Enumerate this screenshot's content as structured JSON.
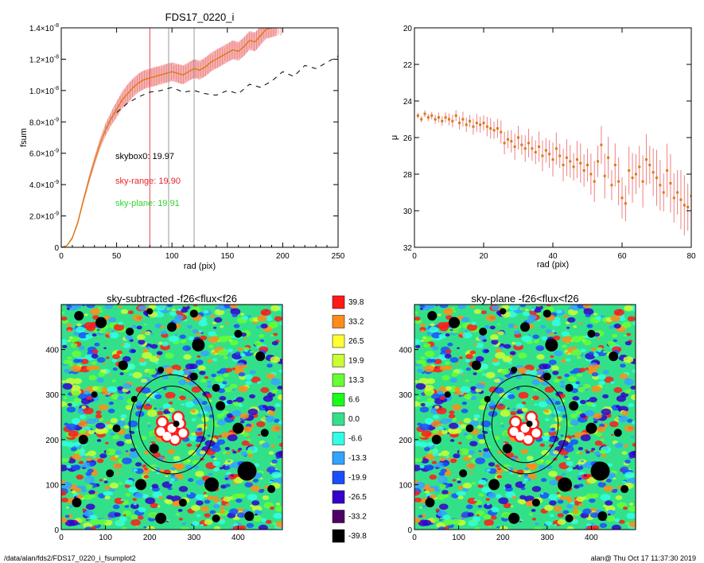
{
  "chart_data": [
    {
      "type": "line",
      "title": "FDS17_0220_i",
      "xlabel": "rad (pix)",
      "ylabel": "fsum",
      "xlim": [
        0,
        250
      ],
      "ylim": [
        0,
        1.4e-08
      ],
      "xticks": [
        "0",
        "50",
        "100",
        "150",
        "200",
        "250"
      ],
      "yticks": [
        {
          "v": 0,
          "t": "0"
        },
        {
          "v": 2e-09,
          "t": "2.0×10",
          "e": "-9"
        },
        {
          "v": 4e-09,
          "t": "4.0×10",
          "e": "-9"
        },
        {
          "v": 6e-09,
          "t": "6.0×10",
          "e": "-9"
        },
        {
          "v": 8e-09,
          "t": "8.0×10",
          "e": "-9"
        },
        {
          "v": 1e-08,
          "t": "1.0×10",
          "e": "-8"
        },
        {
          "v": 1.2e-08,
          "t": "1.2×10",
          "e": "-8"
        },
        {
          "v": 1.4e-08,
          "t": "1.4×10",
          "e": "-8"
        }
      ],
      "series": [
        {
          "color": "#d97a14",
          "x": [
            0,
            5,
            10,
            15,
            20,
            25,
            30,
            35,
            40,
            45,
            50,
            55,
            60,
            65,
            70,
            75,
            80,
            85,
            90,
            95,
            100,
            105,
            110,
            115,
            120,
            125,
            130,
            135,
            140,
            145,
            150,
            155,
            160,
            165,
            170,
            175,
            180,
            185,
            190,
            195
          ],
          "y": [
            0,
            1e-10,
            6e-10,
            1.6e-09,
            3e-09,
            4.3e-09,
            5.5e-09,
            6.6e-09,
            7.5e-09,
            8.2e-09,
            8.8e-09,
            9.4e-09,
            9.8e-09,
            1.02e-08,
            1.05e-08,
            1.07e-08,
            1.08e-08,
            1.09e-08,
            1.1e-08,
            1.11e-08,
            1.12e-08,
            1.11e-08,
            1.1e-08,
            1.12e-08,
            1.14e-08,
            1.13e-08,
            1.15e-08,
            1.18e-08,
            1.2e-08,
            1.22e-08,
            1.24e-08,
            1.26e-08,
            1.25e-08,
            1.28e-08,
            1.32e-08,
            1.31e-08,
            1.35e-08,
            1.39e-08,
            1.4e-08,
            1.41e-08
          ]
        },
        {
          "color": "#000000",
          "dashed": true,
          "x": [
            50,
            60,
            70,
            80,
            90,
            100,
            110,
            120,
            130,
            140,
            150,
            160,
            170,
            180,
            190,
            200,
            210,
            220,
            230,
            240,
            250
          ],
          "y": [
            8.6e-09,
            9.2e-09,
            9.6e-09,
            9.9e-09,
            1e-08,
            1.02e-08,
            9.9e-09,
            1e-08,
            9.8e-09,
            9.7e-09,
            1e-08,
            9.8e-09,
            1.04e-08,
            1.02e-08,
            1.06e-08,
            1.12e-08,
            1.09e-08,
            1.16e-08,
            1.14e-08,
            1.18e-08,
            1.22e-08
          ]
        }
      ],
      "vlines": [
        {
          "x": 80,
          "color": "#e8464f"
        },
        {
          "x": 97,
          "color": "#999999"
        },
        {
          "x": 120,
          "color": "#999999"
        }
      ],
      "annotations": [
        {
          "text": "skybox0: 19.97",
          "color": "#000000"
        },
        {
          "text": "sky-range: 19.90",
          "color": "#e8262c"
        },
        {
          "text": "sky-plane: 19.91",
          "color": "#2cd62c"
        }
      ]
    },
    {
      "type": "scatter",
      "xlabel": "rad (pix)",
      "ylabel": "μ",
      "xlim": [
        0,
        80
      ],
      "ylim": [
        32,
        20
      ],
      "xticks": [
        "0",
        "20",
        "40",
        "60",
        "80"
      ],
      "yticks": [
        "20",
        "22",
        "24",
        "26",
        "28",
        "30",
        "32"
      ],
      "x": [
        1,
        2,
        3,
        4,
        5,
        6,
        7,
        8,
        9,
        10,
        11,
        12,
        13,
        14,
        15,
        16,
        17,
        18,
        19,
        20,
        21,
        22,
        23,
        24,
        25,
        26,
        27,
        28,
        29,
        30,
        31,
        32,
        33,
        34,
        35,
        36,
        37,
        38,
        39,
        40,
        41,
        42,
        43,
        44,
        45,
        46,
        47,
        48,
        49,
        50,
        51,
        52,
        53,
        54,
        55,
        56,
        57,
        58,
        59,
        60,
        61,
        62,
        63,
        64,
        65,
        66,
        67,
        68,
        69,
        70,
        71,
        72,
        73,
        74,
        75,
        76,
        77,
        78,
        79,
        80
      ],
      "y": [
        24.8,
        25.0,
        24.7,
        24.9,
        24.8,
        25.0,
        24.9,
        25.1,
        24.9,
        25.0,
        25.1,
        24.8,
        25.2,
        25.0,
        25.3,
        25.1,
        25.4,
        25.2,
        25.3,
        25.2,
        25.4,
        25.5,
        25.6,
        25.5,
        25.7,
        26.3,
        26.1,
        26.2,
        26.5,
        26.0,
        26.4,
        26.6,
        26.3,
        26.6,
        26.8,
        26.5,
        27.0,
        26.7,
        26.9,
        27.2,
        26.6,
        27.0,
        27.5,
        27.1,
        27.3,
        27.6,
        27.2,
        27.4,
        27.8,
        27.5,
        28.0,
        28.4,
        27.3,
        26.4,
        28.1,
        27.1,
        28.6,
        27.5,
        28.4,
        29.3,
        29.6,
        27.8,
        28.2,
        28.0,
        27.6,
        28.4,
        27.2,
        27.5,
        27.9,
        28.2,
        28.6,
        29.0,
        27.8,
        28.5,
        29.3,
        29.0,
        29.4,
        29.7,
        29.8,
        29.2
      ],
      "colors": {
        "points": "#d97a14",
        "errorbars": "#f08080"
      }
    }
  ],
  "maps": [
    {
      "title": "sky-subtracted -f26<flux<f26",
      "xticks": [
        "0",
        "100",
        "200",
        "300",
        "400"
      ],
      "yticks": [
        "0",
        "100",
        "200",
        "300",
        "400"
      ],
      "lim": [
        0,
        500
      ]
    },
    {
      "title": "sky-plane -f26<flux<f26",
      "xticks": [
        "0",
        "100",
        "200",
        "300",
        "400"
      ],
      "yticks": [
        "0",
        "100",
        "200",
        "300",
        "400"
      ],
      "lim": [
        0,
        500
      ]
    }
  ],
  "colorbar": {
    "labels": [
      "39.8",
      "33.2",
      "26.5",
      "19.9",
      "13.3",
      "6.6",
      "0.0",
      "-6.6",
      "-13.3",
      "-19.9",
      "-26.5",
      "-33.2",
      "-39.8"
    ],
    "colors": [
      "#ff1a1a",
      "#ff8c1a",
      "#ffff33",
      "#ccff33",
      "#66ff33",
      "#1aff1a",
      "#33e08a",
      "#33ffe6",
      "#33a3ff",
      "#1a4dff",
      "#3300cc",
      "#4d0066",
      "#000000"
    ]
  },
  "footer": {
    "left": "/data/alan/fds2/FDS17_0220_i_fsumplot2",
    "right": "alan@  Thu Oct 17 11:37:30 2019"
  }
}
